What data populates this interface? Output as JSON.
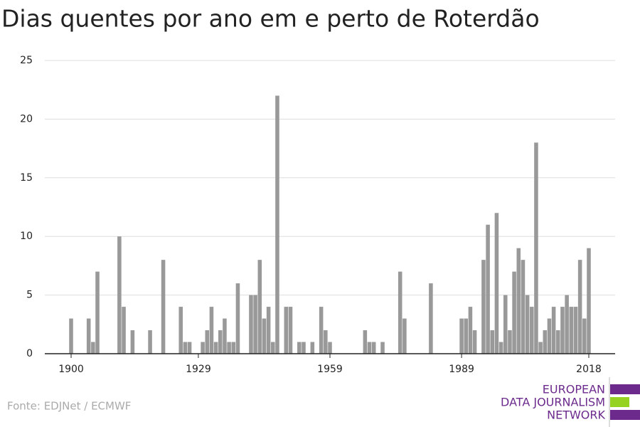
{
  "chart_data": {
    "type": "bar",
    "title": "Dias quentes por ano em e perto de Roterdão",
    "source": "Fonte: EDJNet / ECMWF",
    "logo": [
      "EUROPEAN",
      "DATA JOURNALISM",
      "NETWORK"
    ],
    "color": "#999999",
    "x": [
      1900,
      1901,
      1902,
      1903,
      1904,
      1905,
      1906,
      1907,
      1908,
      1909,
      1910,
      1911,
      1912,
      1913,
      1914,
      1915,
      1916,
      1917,
      1918,
      1919,
      1920,
      1921,
      1922,
      1923,
      1924,
      1925,
      1926,
      1927,
      1928,
      1929,
      1930,
      1931,
      1932,
      1933,
      1934,
      1935,
      1936,
      1937,
      1938,
      1939,
      1940,
      1941,
      1942,
      1943,
      1944,
      1945,
      1946,
      1947,
      1948,
      1949,
      1950,
      1951,
      1952,
      1953,
      1954,
      1955,
      1956,
      1957,
      1958,
      1959,
      1960,
      1961,
      1962,
      1963,
      1964,
      1965,
      1966,
      1967,
      1968,
      1969,
      1970,
      1971,
      1972,
      1973,
      1974,
      1975,
      1976,
      1977,
      1978,
      1979,
      1980,
      1981,
      1982,
      1983,
      1984,
      1985,
      1986,
      1987,
      1988,
      1989,
      1990,
      1991,
      1992,
      1993,
      1994,
      1995,
      1996,
      1997,
      1998,
      1999,
      2000,
      2001,
      2002,
      2003,
      2004,
      2005,
      2006,
      2007,
      2008,
      2009,
      2010,
      2011,
      2012,
      2013,
      2014,
      2015,
      2016,
      2017,
      2018
    ],
    "values": [
      3,
      0,
      0,
      0,
      3,
      1,
      7,
      0,
      0,
      0,
      0,
      10,
      4,
      0,
      2,
      0,
      0,
      0,
      2,
      0,
      0,
      8,
      0,
      0,
      0,
      4,
      1,
      1,
      0,
      0,
      1,
      2,
      4,
      1,
      2,
      3,
      1,
      1,
      6,
      0,
      0,
      5,
      5,
      8,
      3,
      4,
      1,
      22,
      0,
      4,
      4,
      0,
      1,
      1,
      0,
      1,
      0,
      4,
      2,
      1,
      0,
      0,
      0,
      0,
      0,
      0,
      0,
      2,
      1,
      1,
      0,
      1,
      0,
      0,
      0,
      7,
      3,
      0,
      0,
      0,
      0,
      0,
      6,
      0,
      0,
      0,
      0,
      0,
      0,
      3,
      3,
      4,
      2,
      0,
      8,
      11,
      2,
      12,
      1,
      5,
      2,
      7,
      9,
      8,
      5,
      4,
      18,
      1,
      2,
      3,
      4,
      2,
      4,
      5,
      4,
      4,
      8,
      3,
      9
    ],
    "xlim": [
      1894,
      2024
    ],
    "xticks": [
      1900,
      1929,
      1959,
      1989,
      2018
    ],
    "ylim": [
      0,
      25
    ],
    "yticks": [
      0,
      5,
      10,
      15,
      20,
      25
    ],
    "grid": true
  }
}
